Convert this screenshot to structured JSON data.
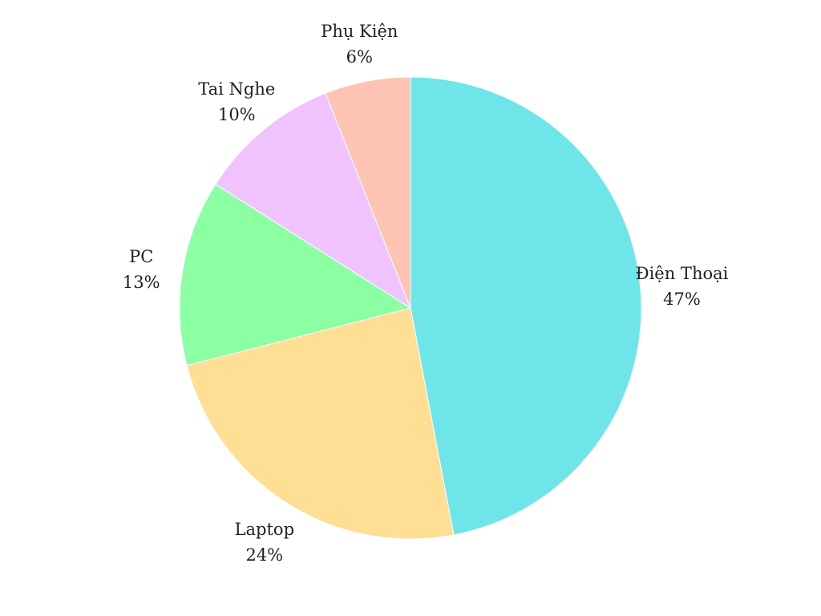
{
  "chart_data": {
    "type": "pie",
    "title": "",
    "start_angle_deg": 0,
    "direction": "clockwise",
    "slices": [
      {
        "label": "Điện Thoại",
        "value": 47,
        "value_label": "47%",
        "color": "#6de5e9"
      },
      {
        "label": "Laptop",
        "value": 24,
        "value_label": "24%",
        "color": "#fedf93"
      },
      {
        "label": "PC",
        "value": 13,
        "value_label": "13%",
        "color": "#8bffa2"
      },
      {
        "label": "Tai Nghe",
        "value": 10,
        "value_label": "10%",
        "color": "#f0c3fe"
      },
      {
        "label": "Phụ Kiện",
        "value": 6,
        "value_label": "6%",
        "color": "#fec4b3"
      }
    ]
  }
}
